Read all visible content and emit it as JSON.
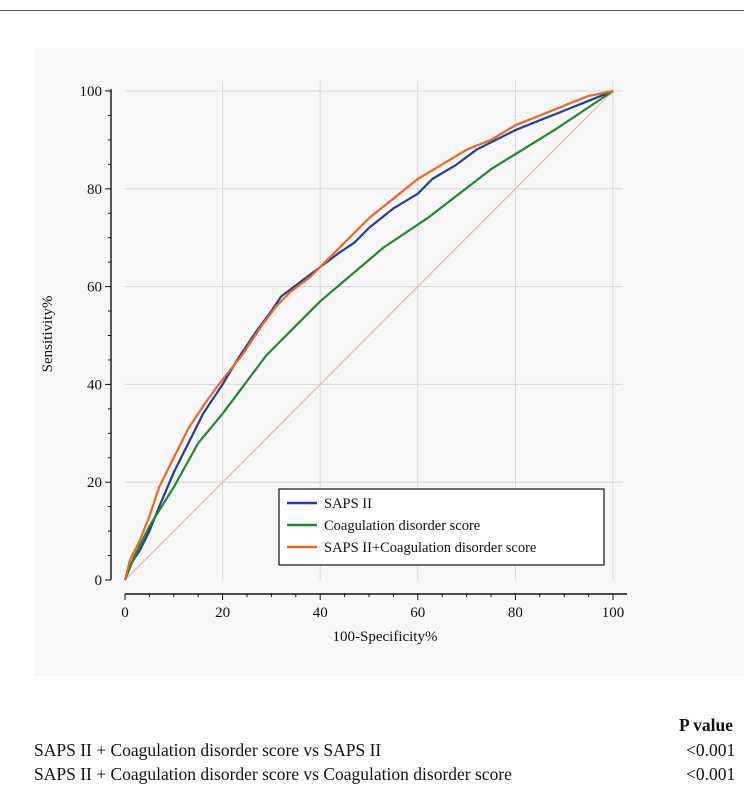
{
  "chart_data": {
    "type": "line",
    "xlabel": "100-Specificity%",
    "ylabel": "Sensitivity%",
    "xlim": [
      0,
      100
    ],
    "ylim": [
      0,
      100
    ],
    "xticks": [
      0,
      20,
      40,
      60,
      80,
      100
    ],
    "yticks": [
      0,
      20,
      40,
      60,
      80,
      100
    ],
    "grid": true,
    "legend_position": "bottom-right",
    "reference_line": {
      "from": [
        0,
        0
      ],
      "to": [
        100,
        100
      ],
      "color": "#e0b8b0"
    },
    "series": [
      {
        "name": "SAPS II",
        "color": "#1f3f9a",
        "points": [
          [
            0,
            0
          ],
          [
            1,
            3
          ],
          [
            3,
            6
          ],
          [
            5,
            10
          ],
          [
            7,
            15
          ],
          [
            10,
            22
          ],
          [
            13,
            28
          ],
          [
            16,
            34
          ],
          [
            20,
            40
          ],
          [
            23,
            45
          ],
          [
            27,
            51
          ],
          [
            30,
            55
          ],
          [
            32,
            58
          ],
          [
            36,
            61
          ],
          [
            40,
            64
          ],
          [
            44,
            67
          ],
          [
            47,
            69
          ],
          [
            50,
            72
          ],
          [
            55,
            76
          ],
          [
            60,
            79
          ],
          [
            63,
            82
          ],
          [
            68,
            85
          ],
          [
            72,
            88
          ],
          [
            76,
            90
          ],
          [
            80,
            92
          ],
          [
            85,
            94
          ],
          [
            90,
            96
          ],
          [
            95,
            98
          ],
          [
            100,
            100
          ]
        ]
      },
      {
        "name": "Coagulation disorder score",
        "color": "#1d8a2a",
        "points": [
          [
            0,
            0
          ],
          [
            2,
            5
          ],
          [
            5,
            11
          ],
          [
            10,
            19
          ],
          [
            15,
            28
          ],
          [
            20,
            34
          ],
          [
            29,
            46
          ],
          [
            40,
            57
          ],
          [
            53,
            68
          ],
          [
            62,
            74
          ],
          [
            75,
            84
          ],
          [
            88,
            92
          ],
          [
            100,
            100
          ]
        ]
      },
      {
        "name": "SAPS II+Coagulation disorder score",
        "color": "#f0661f",
        "points": [
          [
            0,
            0
          ],
          [
            1,
            4
          ],
          [
            3,
            8
          ],
          [
            5,
            13
          ],
          [
            7,
            19
          ],
          [
            10,
            25
          ],
          [
            13,
            31
          ],
          [
            17,
            37
          ],
          [
            20,
            41
          ],
          [
            24,
            46
          ],
          [
            28,
            52
          ],
          [
            31,
            56
          ],
          [
            34,
            59
          ],
          [
            38,
            62
          ],
          [
            42,
            66
          ],
          [
            46,
            70
          ],
          [
            50,
            74
          ],
          [
            55,
            78
          ],
          [
            60,
            82
          ],
          [
            65,
            85
          ],
          [
            70,
            88
          ],
          [
            75,
            90
          ],
          [
            80,
            93
          ],
          [
            85,
            95
          ],
          [
            90,
            97
          ],
          [
            95,
            99
          ],
          [
            100,
            100
          ]
        ]
      }
    ]
  },
  "stats": {
    "header": "P value",
    "rows": [
      {
        "comparison": "SAPS II + Coagulation disorder score vs SAPS II",
        "p_value": "<0.001"
      },
      {
        "comparison": "SAPS II + Coagulation disorder score vs Coagulation disorder score",
        "p_value": "<0.001"
      }
    ]
  }
}
